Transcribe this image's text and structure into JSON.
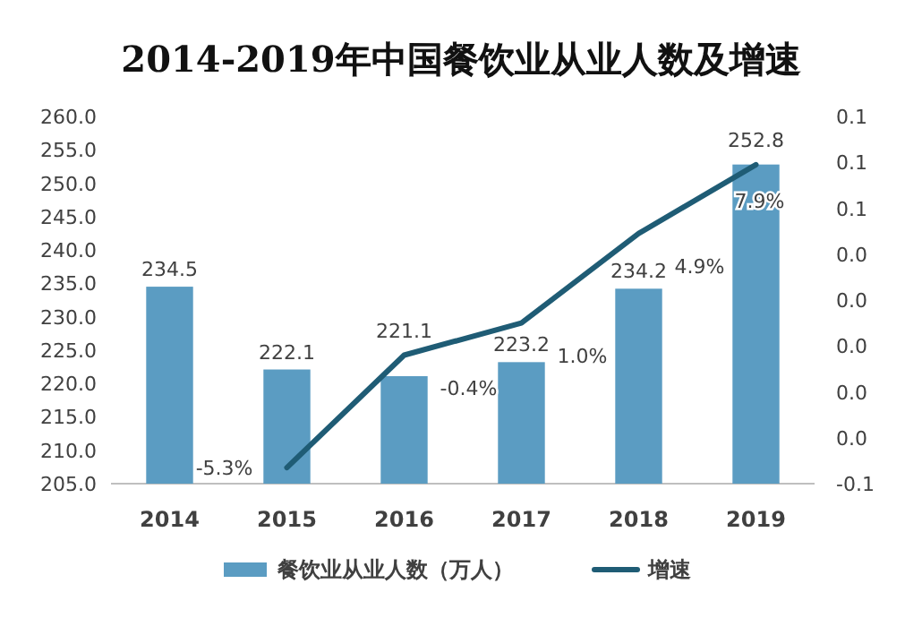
{
  "chart_data": {
    "type": "bar",
    "title": "2014-2019年中国餐饮业从业人数及增速",
    "categories": [
      "2014",
      "2015",
      "2016",
      "2017",
      "2018",
      "2019"
    ],
    "series": [
      {
        "name": "餐饮业从业人数（万人）",
        "color": "#5b9cc2",
        "values": [
          234.5,
          222.1,
          221.1,
          223.2,
          234.2,
          252.8
        ],
        "value_labels": [
          "234.5",
          "222.1",
          "221.1",
          "223.2",
          "234.2",
          "252.8"
        ]
      },
      {
        "name": "增速",
        "type": "line",
        "axis": "y2",
        "color": "#1f5c75",
        "values": [
          null,
          -0.053,
          -0.004,
          0.01,
          0.049,
          0.079
        ],
        "value_labels": [
          null,
          "-5.3%",
          "-0.4%",
          "1.0%",
          "4.9%",
          "7.9%"
        ]
      }
    ],
    "ylim": [
      205,
      260
    ],
    "yticks": [
      {
        "value": 205,
        "label": "205.0"
      },
      {
        "value": 210,
        "label": "210.0"
      },
      {
        "value": 215,
        "label": "215.0"
      },
      {
        "value": 220,
        "label": "220.0"
      },
      {
        "value": 225,
        "label": "225.0"
      },
      {
        "value": 230,
        "label": "230.0"
      },
      {
        "value": 235,
        "label": "235.0"
      },
      {
        "value": 240,
        "label": "240.0"
      },
      {
        "value": 245,
        "label": "245.0"
      },
      {
        "value": 250,
        "label": "250.0"
      },
      {
        "value": 255,
        "label": "255.0"
      },
      {
        "value": 260,
        "label": "260.0"
      }
    ],
    "y2lim": [
      -0.06,
      0.1
    ],
    "y2ticks": [
      {
        "value": -0.06,
        "label": "-0.1"
      },
      {
        "value": -0.04,
        "label": "0.0"
      },
      {
        "value": -0.02,
        "label": "0.0"
      },
      {
        "value": 0,
        "label": "0.0"
      },
      {
        "value": 0.02,
        "label": "0.0"
      },
      {
        "value": 0.04,
        "label": "0.0"
      },
      {
        "value": 0.06,
        "label": "0.1"
      },
      {
        "value": 0.08,
        "label": "0.1"
      },
      {
        "value": 0.1,
        "label": "0.1"
      }
    ],
    "legend": "bottom"
  }
}
